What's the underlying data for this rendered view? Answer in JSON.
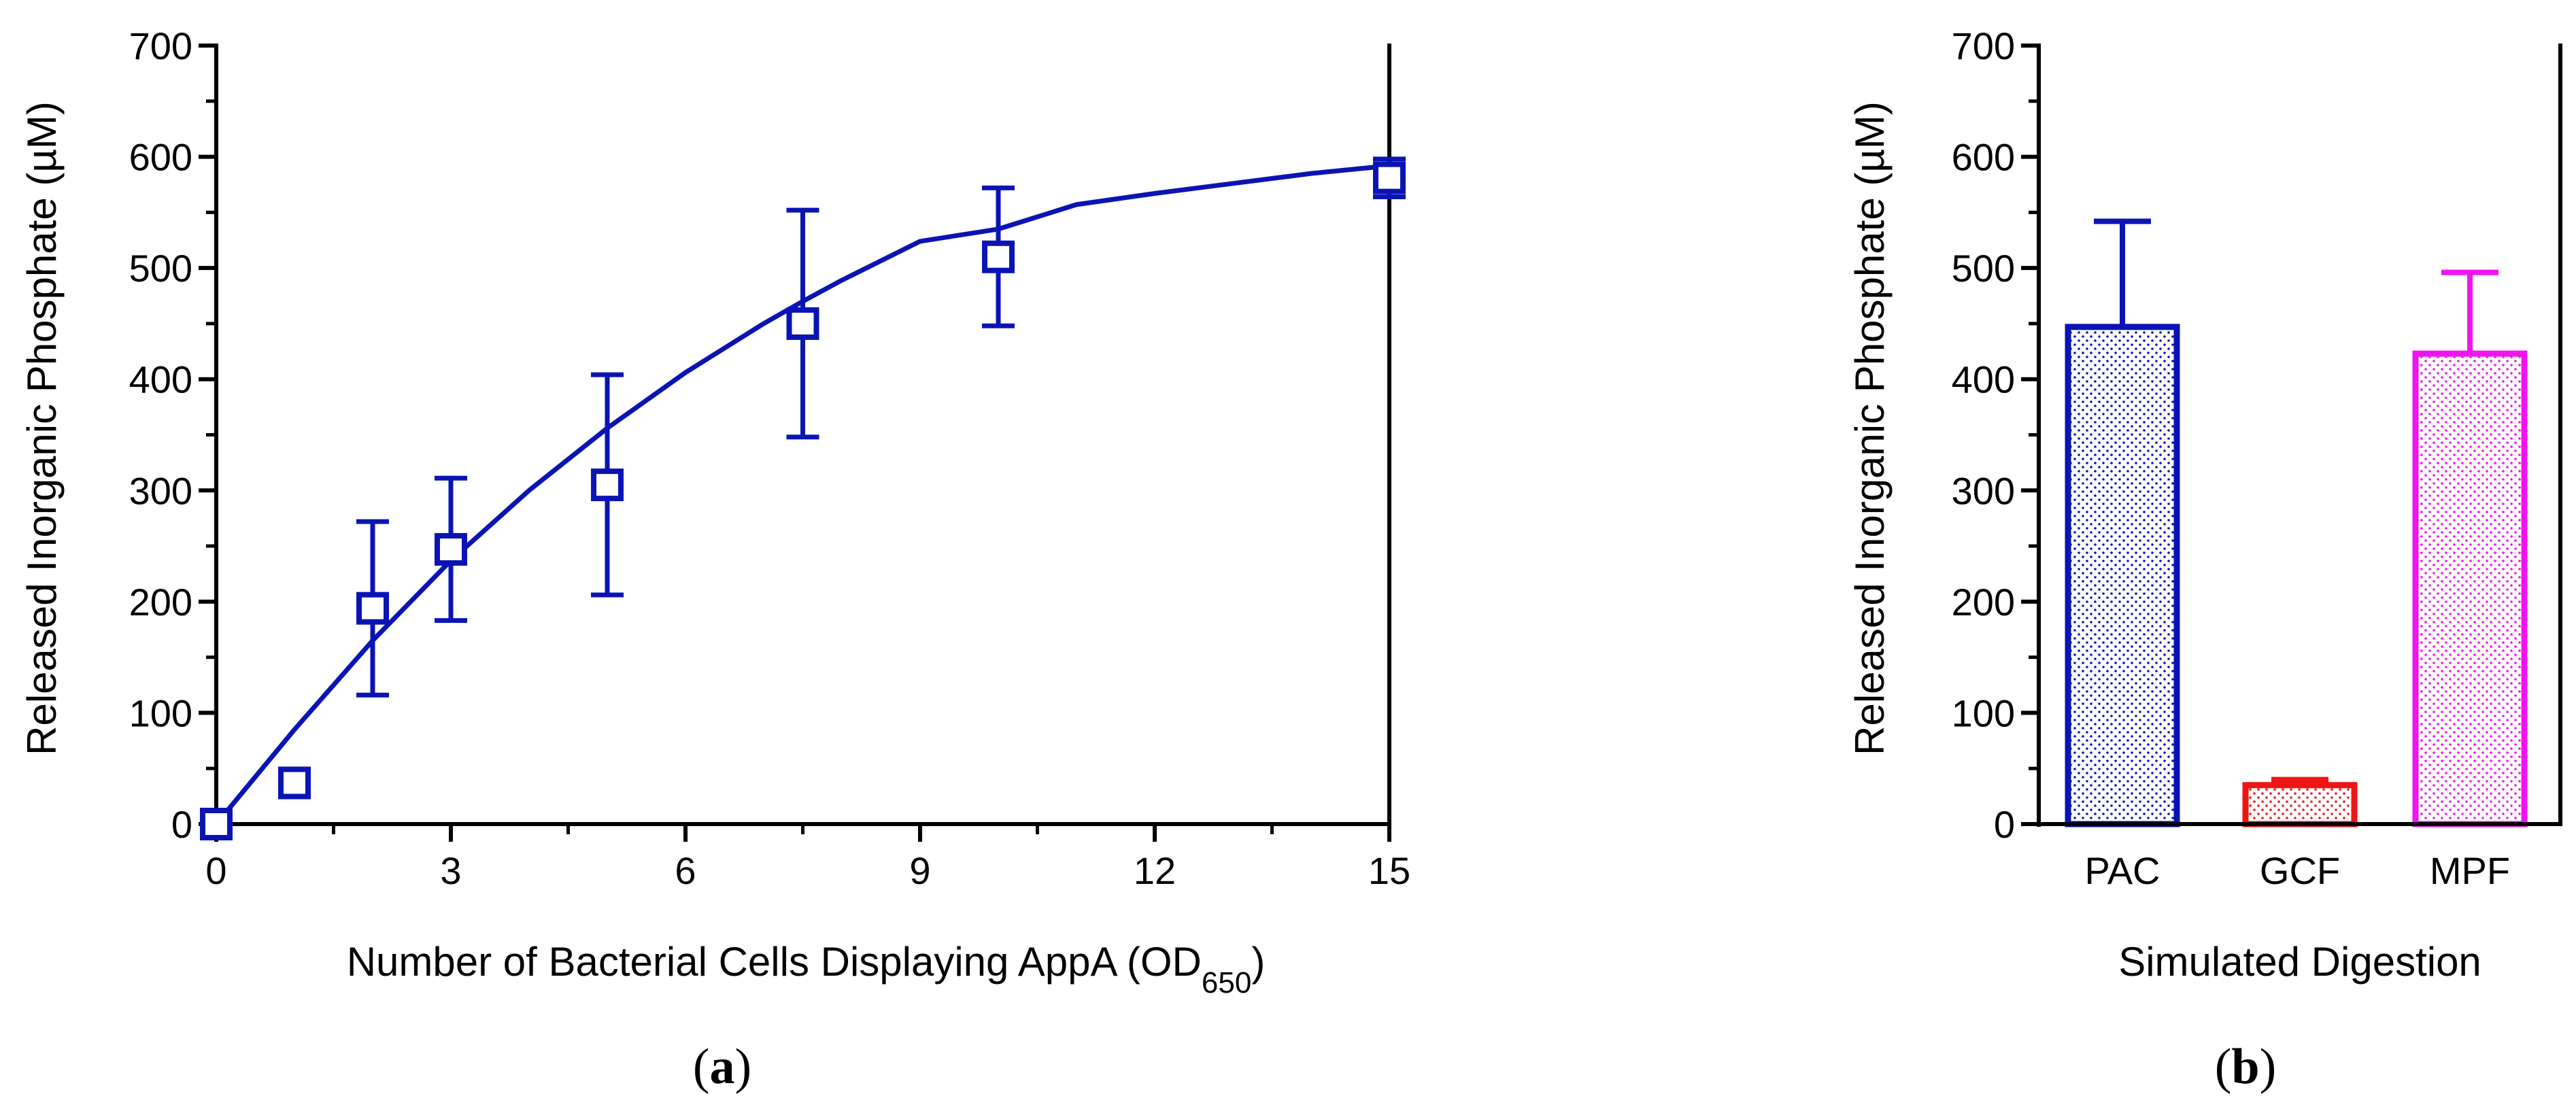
{
  "panels": {
    "a": {
      "label_open": "(",
      "label_letter": "a",
      "label_close": ")"
    },
    "b": {
      "label_open": "(",
      "label_letter": "b",
      "label_close": ")"
    }
  },
  "chart_data": [
    {
      "type": "scatter",
      "panel": "a",
      "xlabel_main": "Number of Bacterial Cells Displaying AppA (OD",
      "xlabel_sub": "650",
      "xlabel_close": ")",
      "ylabel": "Released Inorganic Phosphate (µM)",
      "xlim": [
        0,
        15
      ],
      "ylim": [
        0,
        700
      ],
      "xticks": [
        0,
        3,
        6,
        9,
        12,
        15
      ],
      "yticks": [
        0,
        100,
        200,
        300,
        400,
        500,
        600,
        700
      ],
      "grid": false,
      "color": "#0a14b4",
      "marker": "open-square",
      "points": [
        {
          "x": 0,
          "y": 0,
          "err": 0
        },
        {
          "x": 1,
          "y": 37,
          "err": 0
        },
        {
          "x": 2,
          "y": 194,
          "err": 78
        },
        {
          "x": 3,
          "y": 247,
          "err": 64
        },
        {
          "x": 5,
          "y": 305,
          "err": 99
        },
        {
          "x": 7.5,
          "y": 450,
          "err": 102
        },
        {
          "x": 10,
          "y": 510,
          "err": 62
        },
        {
          "x": 15,
          "y": 581,
          "err": 17
        }
      ],
      "fit": {
        "model": "exponential-rise",
        "x": [
          0,
          1,
          2,
          3,
          4,
          5,
          6,
          7,
          7.5,
          8,
          9,
          10,
          11,
          12,
          13,
          14,
          15
        ],
        "y": [
          0,
          85,
          165,
          237,
          300,
          356,
          406,
          450,
          470,
          489,
          524,
          535,
          557,
          567,
          576,
          585,
          592
        ]
      }
    },
    {
      "type": "bar",
      "panel": "b",
      "xlabel": "Simulated Digestion",
      "ylabel": "Released Inorganic Phosphate (µM)",
      "ylim": [
        0,
        700
      ],
      "yticks": [
        0,
        100,
        200,
        300,
        400,
        500,
        600,
        700
      ],
      "grid": false,
      "categories": [
        "PAC",
        "GCF",
        "MPF"
      ],
      "values": [
        447,
        35,
        423
      ],
      "errors": [
        95,
        5,
        73
      ],
      "colors": [
        "#0a14b4",
        "#f01414",
        "#f014f0"
      ]
    }
  ]
}
